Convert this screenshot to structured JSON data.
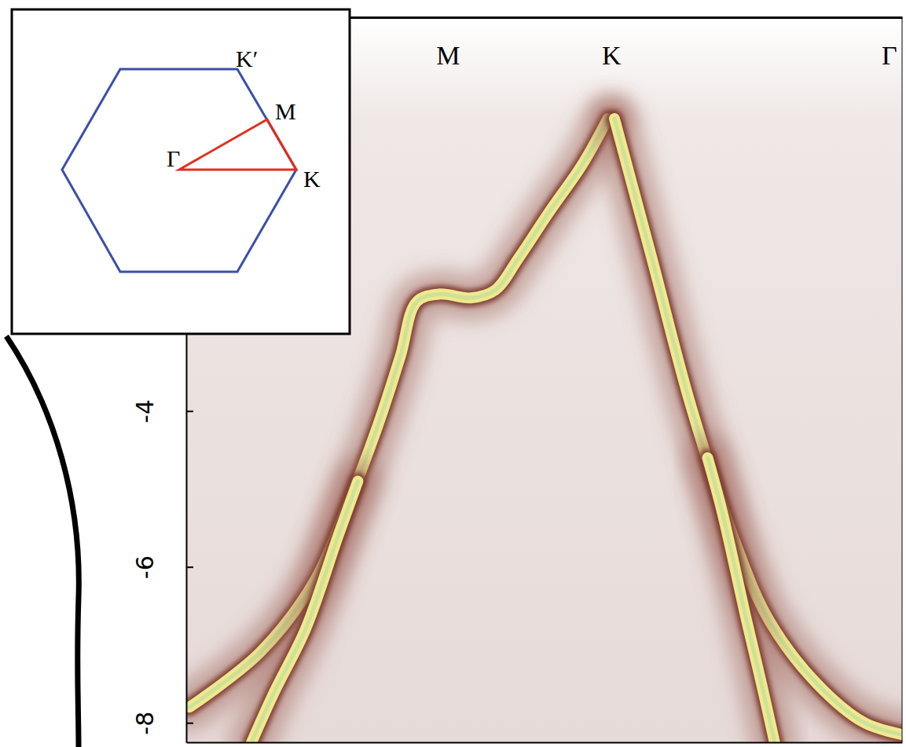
{
  "chart_data": {
    "type": "line",
    "xlim": [
      -2.6,
      1.78
    ],
    "ylim": [
      -8.25,
      1.05
    ],
    "xticks": [
      {
        "value": -1.0,
        "label": "M"
      },
      {
        "value": 0,
        "label": "K"
      },
      {
        "value": 1.7,
        "label": "Γ"
      }
    ],
    "yticks": [
      -8,
      -6,
      -4
    ],
    "color": "#f0e88f",
    "series": [
      {
        "x": [
          -2.58,
          -2.15,
          -1.82,
          -1.63,
          -1.43,
          -1.29,
          -1.19,
          -1.05,
          -0.86,
          -0.71,
          -0.57,
          -0.38,
          -0.18,
          -0.02
        ],
        "values": [
          -7.8,
          -7.1,
          -6.2,
          -5.3,
          -4.2,
          -3.3,
          -2.6,
          -2.5,
          -2.55,
          -2.45,
          -2.05,
          -1.45,
          -0.85,
          -0.25
        ]
      },
      {
        "x": [
          0.02,
          0.25,
          0.49,
          0.78,
          0.97,
          1.26,
          1.55,
          1.78
        ],
        "values": [
          -0.25,
          -2.05,
          -3.95,
          -5.8,
          -6.7,
          -7.5,
          -8.0,
          -8.15
        ]
      },
      {
        "x": [
          0.59,
          0.68,
          0.83,
          0.92,
          1.0
        ],
        "values": [
          -4.6,
          -5.3,
          -6.7,
          -7.5,
          -8.25
        ]
      },
      {
        "x": [
          -1.55,
          -1.67,
          -1.87,
          -2.06,
          -2.2
        ],
        "values": [
          -4.9,
          -5.6,
          -6.8,
          -7.6,
          -8.25
        ]
      }
    ],
    "annotations": [
      "K′",
      "M",
      "Γ",
      "K"
    ]
  }
}
